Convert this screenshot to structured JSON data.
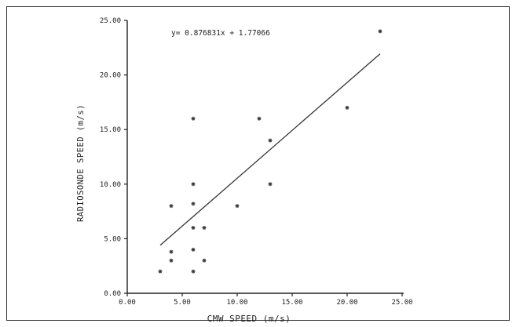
{
  "chart_data": {
    "type": "scatter",
    "title": "",
    "xlabel": "CMW SPEED (m/s)",
    "ylabel": "RADIOSONDE SPEED (m/s)",
    "xlim": [
      0,
      25
    ],
    "ylim": [
      0,
      25
    ],
    "x_ticks": [
      "0.00",
      "5.00",
      "10.00",
      "15.00",
      "20.00",
      "25.00"
    ],
    "y_ticks": [
      "0.00",
      "5.00",
      "10.00",
      "15.00",
      "20.00",
      "25.00"
    ],
    "equation": "y= 0.876831x + 1.77066",
    "fit_line": {
      "slope": 0.876831,
      "intercept": 1.77066,
      "x_range": [
        3,
        23
      ]
    },
    "grid": false,
    "points": [
      {
        "x": 3,
        "y": 2
      },
      {
        "x": 4,
        "y": 3
      },
      {
        "x": 4,
        "y": 3.8
      },
      {
        "x": 4,
        "y": 8
      },
      {
        "x": 6,
        "y": 2
      },
      {
        "x": 6,
        "y": 4
      },
      {
        "x": 6,
        "y": 6
      },
      {
        "x": 6,
        "y": 8.2
      },
      {
        "x": 6,
        "y": 10
      },
      {
        "x": 6,
        "y": 16
      },
      {
        "x": 7,
        "y": 3
      },
      {
        "x": 7,
        "y": 6
      },
      {
        "x": 10,
        "y": 8
      },
      {
        "x": 12,
        "y": 16
      },
      {
        "x": 13,
        "y": 10
      },
      {
        "x": 13,
        "y": 14
      },
      {
        "x": 20,
        "y": 17
      },
      {
        "x": 23,
        "y": 24
      }
    ]
  }
}
